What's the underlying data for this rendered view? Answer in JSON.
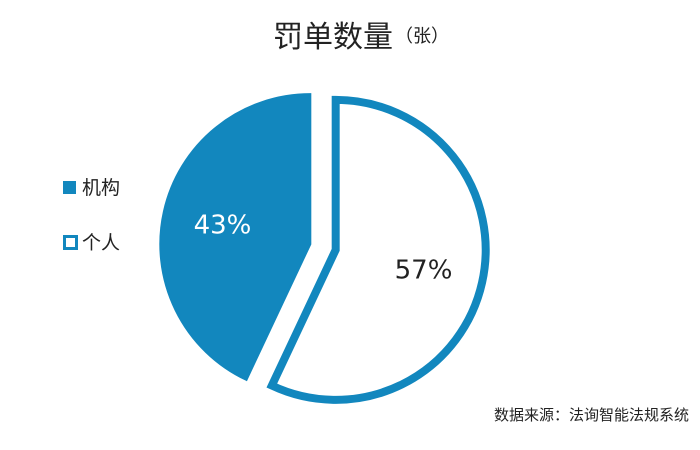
{
  "chart_data": {
    "type": "pie",
    "title": "罚单数量",
    "title_unit": "（张）",
    "categories": [
      "机构",
      "个人"
    ],
    "values": [
      43,
      57
    ],
    "labels": [
      "43%",
      "57%"
    ],
    "colors": {
      "primary": "#1287BE",
      "secondary_fill": "#FFFFFF",
      "label_on_primary": "#FFFFFF",
      "label_on_secondary": "#222222"
    },
    "legend_position": "left",
    "exploded": true
  },
  "footer": {
    "source": "数据来源：法询智能法规系统"
  }
}
